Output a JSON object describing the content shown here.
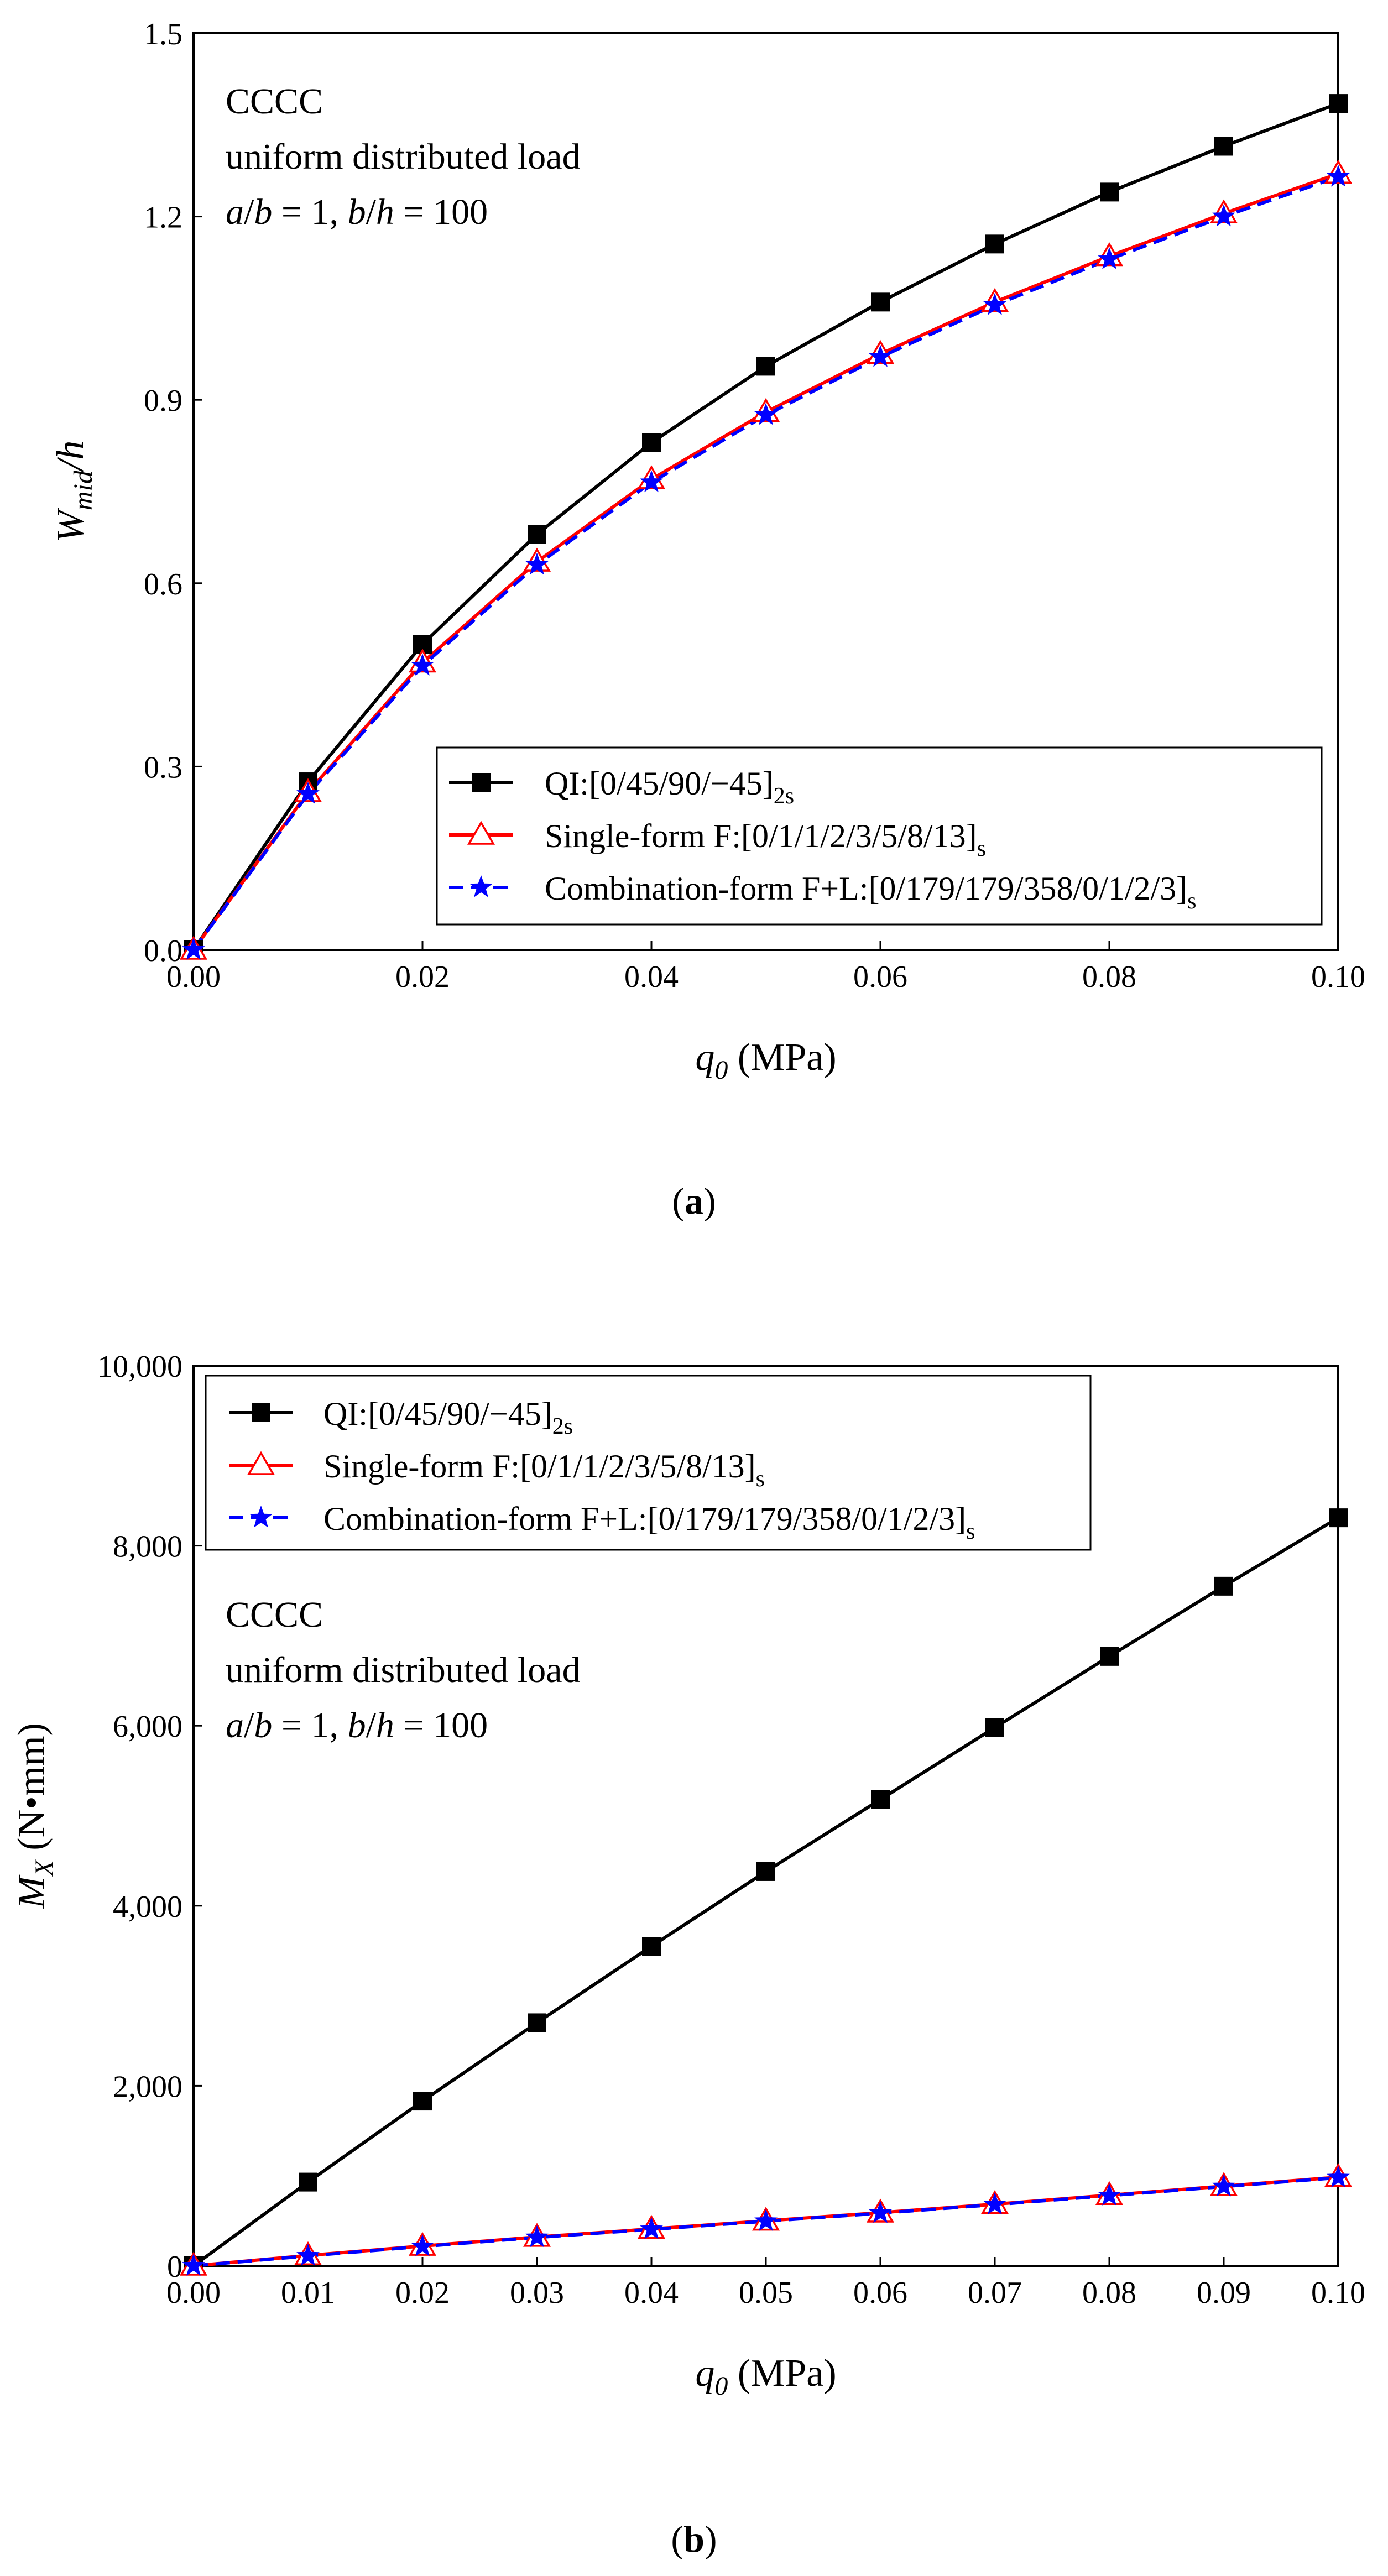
{
  "colors": {
    "qi": "#000000",
    "single": "#ff0000",
    "combination": "#0000ff",
    "axis": "#000000",
    "background": "#ffffff"
  },
  "legend_labels": {
    "qi": {
      "main": "QI:[0/45/90/−45]",
      "sub": "2s"
    },
    "single": {
      "main": "Single-form F:[0/1/1/2/3/5/8/13]",
      "sub": "s"
    },
    "combination": {
      "main": "Combination-form F+L:[0/179/179/358/0/1/2/3]",
      "sub": "s"
    }
  },
  "annotation": {
    "line1": "CCCC",
    "line2": "uniform distributed load",
    "line3": {
      "a": "a",
      "slash1": "/",
      "b1": "b",
      "eq1": " = 1, ",
      "b2": "b",
      "slash2": "/",
      "h": "h",
      "eq2": " = 100"
    }
  },
  "chart_data": [
    {
      "panel": "(a)",
      "type": "line",
      "xlabel": {
        "sym": "q",
        "sub": "0",
        "unit": " (MPa)"
      },
      "ylabel": {
        "sym": "W",
        "sub": "mid",
        "rest": "/h"
      },
      "xlim": [
        0,
        0.1
      ],
      "ylim": [
        0,
        1.5
      ],
      "xticks": [
        "0.00",
        "0.02",
        "0.04",
        "0.06",
        "0.08",
        "0.10"
      ],
      "yticks": [
        "0.0",
        "0.3",
        "0.6",
        "0.9",
        "1.2",
        "1.5"
      ],
      "x": [
        0,
        0.01,
        0.02,
        0.03,
        0.04,
        0.05,
        0.06,
        0.07,
        0.08,
        0.09,
        0.1
      ],
      "series": [
        {
          "key": "qi",
          "name": "QI:[0/45/90/−45]2s",
          "values": [
            0,
            0.275,
            0.5,
            0.68,
            0.83,
            0.955,
            1.06,
            1.155,
            1.24,
            1.315,
            1.385
          ]
        },
        {
          "key": "single",
          "name": "Single-form F:[0/1/1/2/3/5/8/13]s",
          "values": [
            0,
            0.258,
            0.47,
            0.635,
            0.77,
            0.88,
            0.975,
            1.06,
            1.135,
            1.205,
            1.27
          ]
        },
        {
          "key": "combination",
          "name": "Combination-form F+L:[0/179/179/358/0/1/2/3]s",
          "values": [
            0,
            0.255,
            0.465,
            0.63,
            0.765,
            0.875,
            0.97,
            1.055,
            1.13,
            1.2,
            1.265
          ]
        }
      ],
      "legend_position": "bottom-right",
      "annotation_position": "top-left",
      "caption": {
        "open": "(",
        "letter": "a",
        "close": ")"
      }
    },
    {
      "panel": "(b)",
      "type": "line",
      "xlabel": {
        "sym": "q",
        "sub": "0",
        "unit": " (MPa)"
      },
      "ylabel": {
        "sym": "M",
        "sub": "X",
        "rest": " (N•mm)"
      },
      "xlim": [
        0,
        0.1
      ],
      "ylim": [
        0,
        10000
      ],
      "xticks": [
        "0.00",
        "0.01",
        "0.02",
        "0.03",
        "0.04",
        "0.05",
        "0.06",
        "0.07",
        "0.08",
        "0.09",
        "0.10"
      ],
      "yticks": [
        "0",
        "2,000",
        "4,000",
        "6,000",
        "8,000",
        "10,000"
      ],
      "x": [
        0,
        0.01,
        0.02,
        0.03,
        0.04,
        0.05,
        0.06,
        0.07,
        0.08,
        0.09,
        0.1
      ],
      "series": [
        {
          "key": "qi",
          "name": "QI:[0/45/90/−45]2s",
          "values": [
            0,
            930,
            1830,
            2700,
            3550,
            4380,
            5180,
            5980,
            6770,
            7550,
            8310
          ]
        },
        {
          "key": "single",
          "name": "Single-form F:[0/1/1/2/3/5/8/13]s",
          "values": [
            0,
            115,
            220,
            320,
            410,
            500,
            590,
            685,
            785,
            885,
            985
          ]
        },
        {
          "key": "combination",
          "name": "Combination-form F+L:[0/179/179/358/0/1/2/3]s",
          "values": [
            0,
            110,
            215,
            315,
            405,
            495,
            585,
            680,
            780,
            880,
            980
          ]
        }
      ],
      "legend_position": "top-left",
      "annotation_position": "left-middle",
      "caption": {
        "open": "(",
        "letter": "b",
        "close": ")"
      }
    }
  ]
}
